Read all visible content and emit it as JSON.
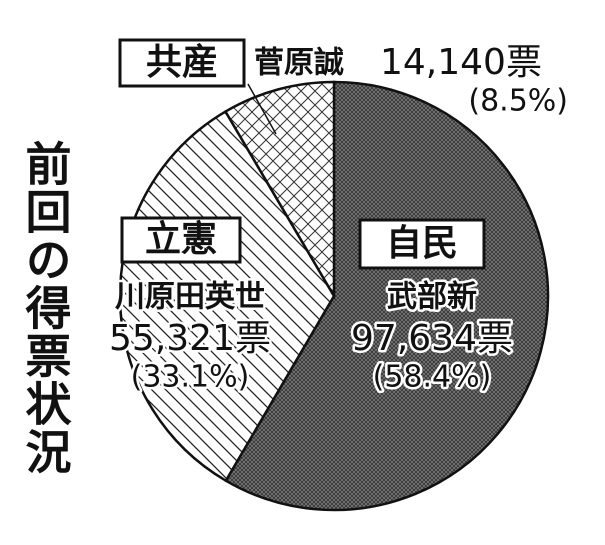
{
  "chart_data": {
    "type": "pie",
    "title": "前回の得票状況",
    "categories": [
      "自民",
      "立憲",
      "共産"
    ],
    "candidates": [
      "武部新",
      "川原田英世",
      "菅原誠"
    ],
    "values": [
      97634,
      55321,
      14140
    ],
    "value_labels": [
      "97,634票",
      "55,321票",
      "14,140票"
    ],
    "percents": [
      58.4,
      33.1,
      8.5
    ],
    "percent_labels": [
      "(58.4%)",
      "(33.1%)",
      "(8.5%)"
    ],
    "colors": [
      "#7a7a7a",
      "#ffffff",
      "#ffffff"
    ]
  }
}
